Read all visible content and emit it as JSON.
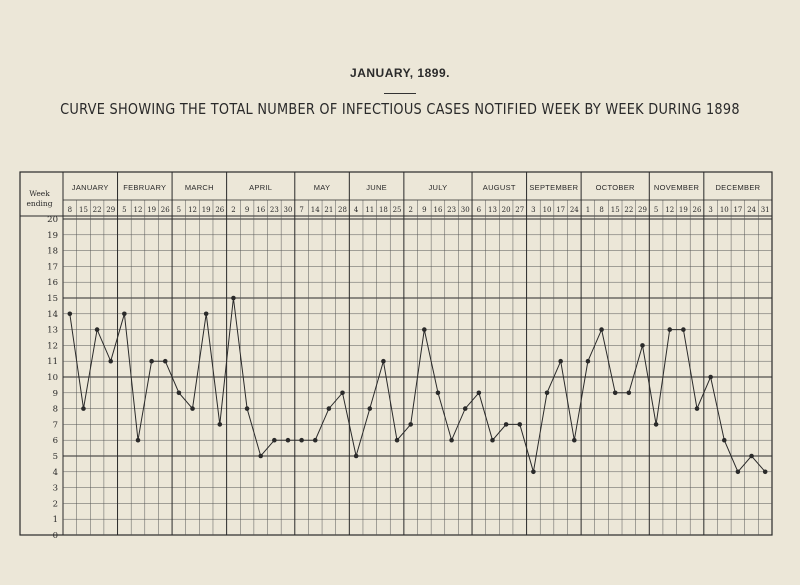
{
  "header": {
    "date": "JANUARY, 1899.",
    "title": "CURVE SHOWING THE TOTAL NUMBER OF INFECTIOUS CASES NOTIFIED WEEK BY WEEK DURING 1898"
  },
  "colors": {
    "ink": "#2a2a2a",
    "paper": "#ece7d8",
    "grid": "#555555"
  },
  "chart_data": {
    "type": "line",
    "title": "CURVE SHOWING THE TOTAL NUMBER OF INFECTIOUS CASES NOTIFIED WEEK BY WEEK DURING 1898",
    "corner_label": [
      "Week",
      "ending"
    ],
    "ylim": [
      0,
      20
    ],
    "yticks": [
      0,
      1,
      2,
      3,
      4,
      5,
      6,
      7,
      8,
      9,
      10,
      11,
      12,
      13,
      14,
      15,
      16,
      17,
      18,
      19,
      20
    ],
    "grid": true,
    "months": [
      {
        "name": "JANUARY",
        "days": [
          8,
          15,
          22,
          29
        ]
      },
      {
        "name": "FEBRUARY",
        "days": [
          5,
          12,
          19,
          26
        ]
      },
      {
        "name": "MARCH",
        "days": [
          5,
          12,
          19,
          26
        ]
      },
      {
        "name": "APRIL",
        "days": [
          2,
          9,
          16,
          23,
          30
        ]
      },
      {
        "name": "MAY",
        "days": [
          7,
          14,
          21,
          28
        ]
      },
      {
        "name": "JUNE",
        "days": [
          4,
          11,
          18,
          25
        ]
      },
      {
        "name": "JULY",
        "days": [
          2,
          9,
          16,
          23,
          30
        ]
      },
      {
        "name": "AUGUST",
        "days": [
          6,
          13,
          20,
          27
        ]
      },
      {
        "name": "SEPTEMBER",
        "days": [
          3,
          10,
          17,
          24
        ]
      },
      {
        "name": "OCTOBER",
        "days": [
          1,
          8,
          15,
          22,
          29
        ]
      },
      {
        "name": "NOVEMBER",
        "days": [
          5,
          12,
          19,
          26
        ]
      },
      {
        "name": "DECEMBER",
        "days": [
          3,
          10,
          17,
          24,
          31
        ]
      }
    ],
    "values": [
      14,
      8,
      13,
      11,
      14,
      6,
      11,
      11,
      9,
      8,
      14,
      7,
      15,
      8,
      5,
      6,
      6,
      6,
      6,
      8,
      9,
      5,
      8,
      11,
      6,
      7,
      13,
      9,
      6,
      8,
      9,
      6,
      7,
      7,
      4,
      9,
      11,
      6,
      11,
      13,
      9,
      9,
      12,
      7,
      13,
      13,
      8,
      10,
      6,
      4,
      5,
      4
    ]
  }
}
